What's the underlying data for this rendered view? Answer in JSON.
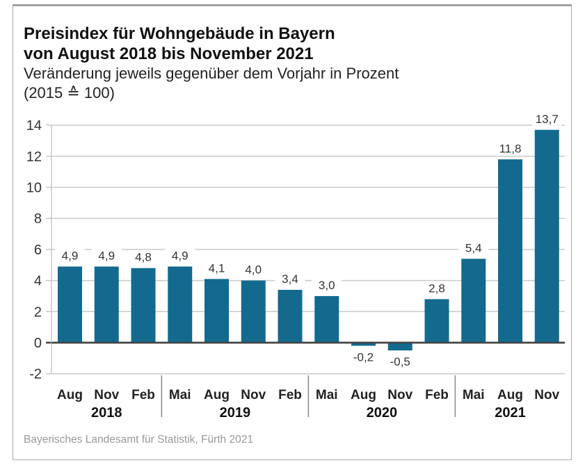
{
  "chart_data": {
    "type": "bar",
    "title": "Preisindex für Wohngebäude in Bayern von August 2018 bis November 2021",
    "title_lines": [
      "Preisindex für Wohngebäude in Bayern",
      "von August 2018 bis November 2021"
    ],
    "subtitle_lines": [
      "Veränderung jeweils gegenüber dem Vorjahr in Prozent",
      "(2015 ≙ 100)"
    ],
    "xlabel": "",
    "ylabel": "",
    "ylim": [
      -2,
      14
    ],
    "yticks": [
      14,
      12,
      10,
      8,
      6,
      4,
      2,
      0,
      -2
    ],
    "grid": true,
    "categories": [
      "Aug",
      "Nov",
      "Feb",
      "Mai",
      "Aug",
      "Nov",
      "Feb",
      "Mai",
      "Aug",
      "Nov",
      "Feb",
      "Mai",
      "Aug",
      "Nov"
    ],
    "values": [
      4.9,
      4.9,
      4.8,
      4.9,
      4.1,
      4.0,
      3.4,
      3.0,
      -0.2,
      -0.5,
      2.8,
      5.4,
      11.8,
      13.7
    ],
    "value_labels": [
      "4,9",
      "4,9",
      "4,8",
      "4,9",
      "4,1",
      "4,0",
      "3,4",
      "3,0",
      "-0,2",
      "-0,5",
      "2,8",
      "5,4",
      "11,8",
      "13,7"
    ],
    "year_groups": [
      {
        "label": "2018",
        "start": 0,
        "end": 2
      },
      {
        "label": "2019",
        "start": 3,
        "end": 6
      },
      {
        "label": "2020",
        "start": 7,
        "end": 10
      },
      {
        "label": "2021",
        "start": 11,
        "end": 13
      }
    ],
    "bar_color": "#136a8e",
    "source": "Bayerisches Landesamt für Statistik, Fürth 2021"
  }
}
